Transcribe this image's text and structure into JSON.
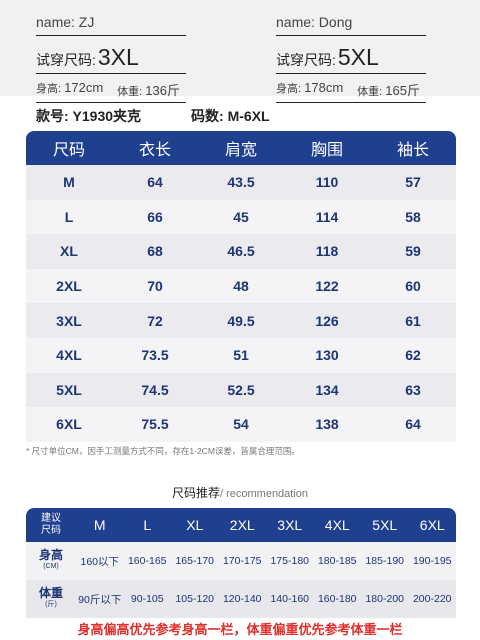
{
  "models": [
    {
      "name": "name: ZJ",
      "try_label": "试穿尺码:",
      "try_size": "3XL",
      "height_label": "身高:",
      "height": "172cm",
      "weight_label": "体重:",
      "weight": "136斤"
    },
    {
      "name": "name: Dong",
      "try_label": "试穿尺码:",
      "try_size": "5XL",
      "height_label": "身高:",
      "height": "178cm",
      "weight_label": "体重:",
      "weight": "165斤"
    }
  ],
  "style_no": "款号: Y1930夹克",
  "size_range": "码数: M-6XL",
  "size_table": {
    "headers": [
      "尺码",
      "衣长",
      "肩宽",
      "胸围",
      "袖长"
    ],
    "rows": [
      [
        "M",
        "64",
        "43.5",
        "110",
        "57"
      ],
      [
        "L",
        "66",
        "45",
        "114",
        "58"
      ],
      [
        "XL",
        "68",
        "46.5",
        "118",
        "59"
      ],
      [
        "2XL",
        "70",
        "48",
        "122",
        "60"
      ],
      [
        "3XL",
        "72",
        "49.5",
        "126",
        "61"
      ],
      [
        "4XL",
        "73.5",
        "51",
        "130",
        "62"
      ],
      [
        "5XL",
        "74.5",
        "52.5",
        "134",
        "63"
      ],
      [
        "6XL",
        "75.5",
        "54",
        "138",
        "64"
      ]
    ]
  },
  "note": "* 尺寸单位CM，因手工测量方式不同，存在1-2CM误差，皆属合理范围。",
  "recommendation": {
    "title_cn": "尺码推荐",
    "title_en": "/ recommendation",
    "corner_line1": "建议",
    "corner_line2": "尺码",
    "sizes": [
      "M",
      "L",
      "XL",
      "2XL",
      "3XL",
      "4XL",
      "5XL",
      "6XL"
    ],
    "height_label": "身高",
    "height_unit": "(CM)",
    "heights": [
      "160以下",
      "160-165",
      "165-170",
      "170-175",
      "175-180",
      "180-185",
      "185-190",
      "190-195"
    ],
    "weight_label": "体重",
    "weight_unit": "(斤)",
    "weights": [
      "90斤以下",
      "90-105",
      "105-120",
      "120-140",
      "140-160",
      "160-180",
      "180-200",
      "200-220"
    ]
  },
  "footer": "身高偏高优先参考身高一栏，体重偏重优先参考体重一栏"
}
